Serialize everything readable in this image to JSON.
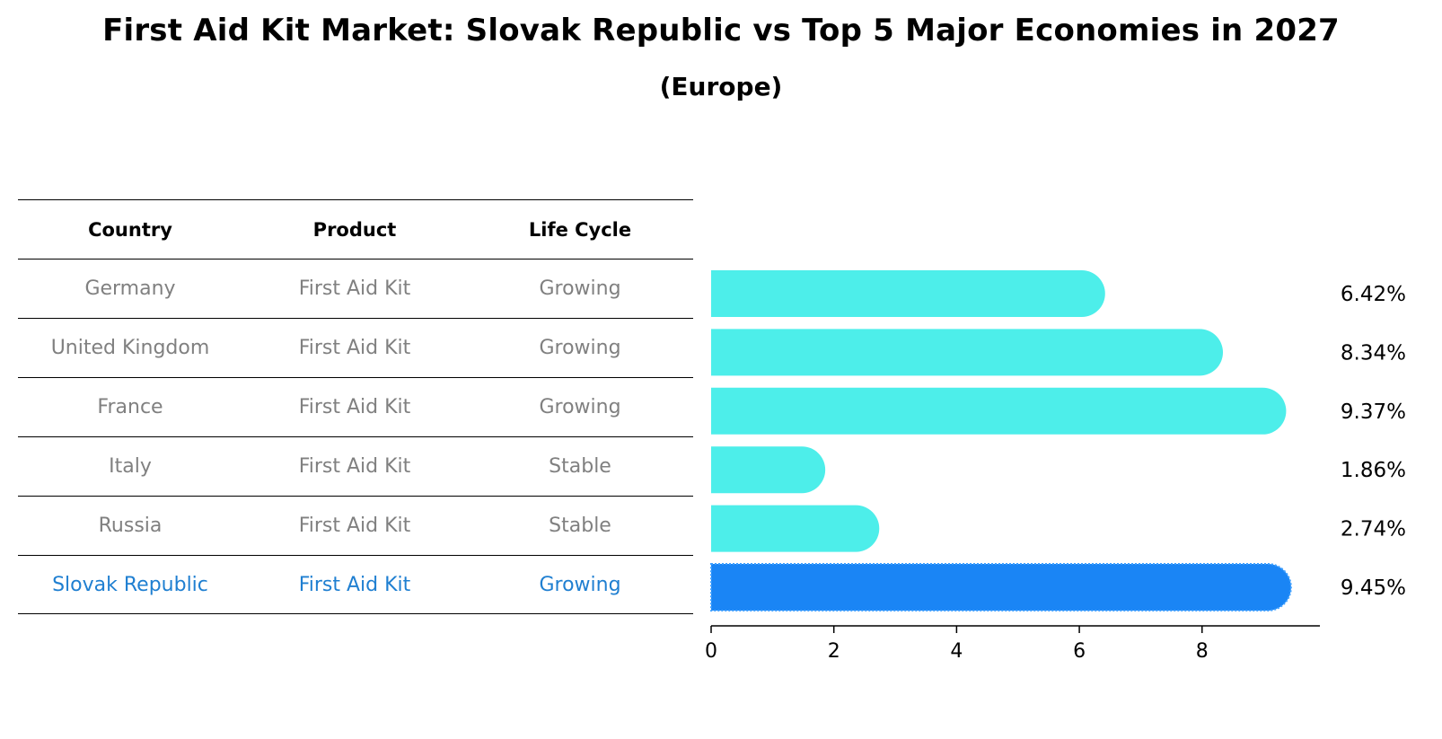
{
  "header": {
    "title": "First Aid Kit Market: Slovak Republic vs Top 5 Major Economies in 2027",
    "subtitle": "(Europe)"
  },
  "table": {
    "columns": [
      "Country",
      "Product",
      "Life Cycle"
    ],
    "rows": [
      {
        "country": "Germany",
        "product": "First Aid Kit",
        "life_cycle": "Growing"
      },
      {
        "country": "United Kingdom",
        "product": "First Aid Kit",
        "life_cycle": "Growing"
      },
      {
        "country": "France",
        "product": "First Aid Kit",
        "life_cycle": "Growing"
      },
      {
        "country": "Italy",
        "product": "First Aid Kit",
        "life_cycle": "Stable"
      },
      {
        "country": "Russia",
        "product": "First Aid Kit",
        "life_cycle": "Stable"
      },
      {
        "country": "Slovak Republic",
        "product": "First Aid Kit",
        "life_cycle": "Growing"
      }
    ]
  },
  "colors": {
    "bar": "#4deeea",
    "highlight_bar": "#1a85f5",
    "highlight_text": "#1f7fd1",
    "muted_text": "#808080"
  },
  "chart_data": {
    "type": "bar",
    "orientation": "horizontal",
    "categories": [
      "Germany",
      "United Kingdom",
      "France",
      "Italy",
      "Russia",
      "Slovak Republic"
    ],
    "values": [
      6.42,
      8.34,
      9.37,
      1.86,
      2.74,
      9.45
    ],
    "value_labels": [
      "6.42%",
      "8.34%",
      "9.37%",
      "1.86%",
      "2.74%",
      "9.45%"
    ],
    "highlight_index": 5,
    "xlim": [
      0,
      9.92
    ],
    "xticks": [
      0,
      2,
      4,
      6,
      8
    ],
    "xlabel": "",
    "ylabel": "",
    "grid": false
  }
}
